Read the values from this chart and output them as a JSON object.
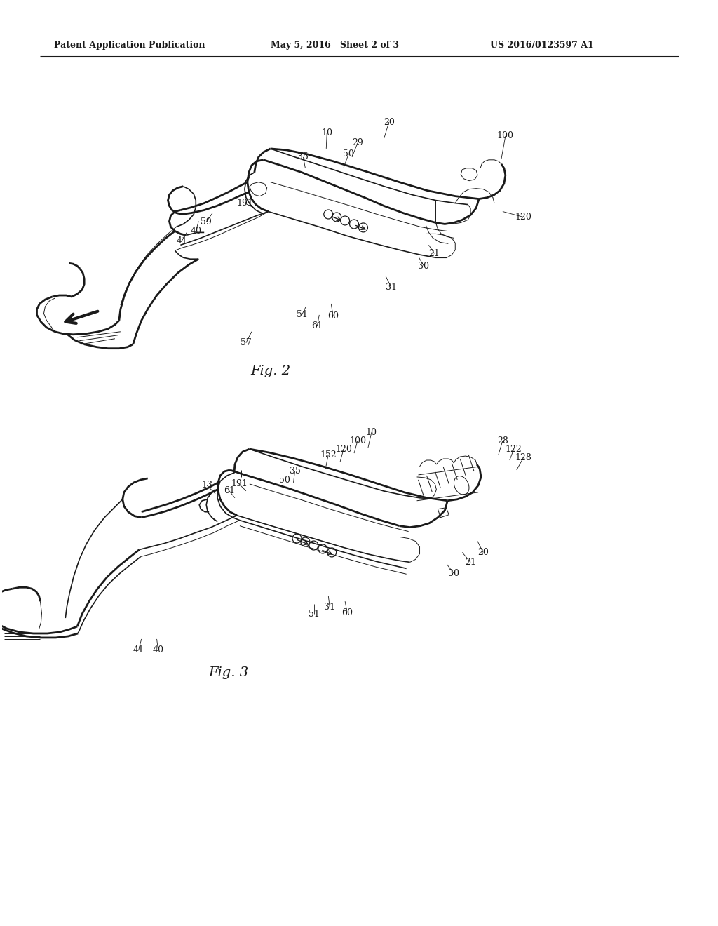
{
  "bg_color": "#ffffff",
  "line_color": "#1a1a1a",
  "header_left": "Patent Application Publication",
  "header_mid": "May 5, 2016   Sheet 2 of 3",
  "header_right": "US 2016/0123597 A1",
  "fig2_caption": "Fig. 2",
  "fig3_caption": "Fig. 3",
  "lw_heavy": 2.0,
  "lw_med": 1.2,
  "lw_thin": 0.7
}
